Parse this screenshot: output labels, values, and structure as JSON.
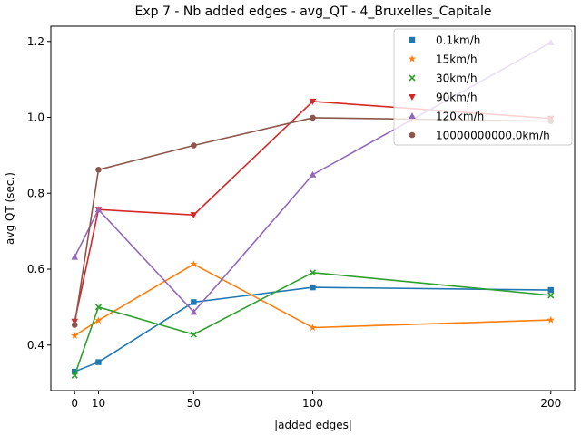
{
  "chart_data": {
    "type": "line",
    "title": "Exp 7 - Nb added edges - avg_QT - 4_Bruxelles_Capitale",
    "xlabel": "|added edges|",
    "ylabel": "avg QT (sec.)",
    "x": [
      0,
      10,
      50,
      100,
      200
    ],
    "xticks": [
      0,
      10,
      50,
      100,
      200
    ],
    "yticks": [
      0.4,
      0.6,
      0.8,
      1.0,
      1.2
    ],
    "ytick_labels": [
      "0.4",
      "0.6",
      "0.8",
      "1.0",
      "1.2"
    ],
    "xlim": [
      -10,
      210
    ],
    "ylim": [
      0.28,
      1.24
    ],
    "grid": false,
    "legend_position": "top-right",
    "series": [
      {
        "name": "0.1km/h",
        "color": "#1f77b4",
        "marker": "square",
        "values": [
          0.33,
          0.355,
          0.513,
          0.552,
          0.545
        ]
      },
      {
        "name": "15km/h",
        "color": "#ff7f0e",
        "marker": "star",
        "values": [
          0.425,
          0.465,
          0.613,
          0.446,
          0.466
        ]
      },
      {
        "name": "30km/h",
        "color": "#2ca02c",
        "marker": "x",
        "values": [
          0.32,
          0.5,
          0.428,
          0.591,
          0.531
        ]
      },
      {
        "name": "90km/h",
        "color": "#d62728",
        "marker": "triangle-down",
        "values": [
          0.462,
          0.757,
          0.743,
          1.042,
          0.997
        ]
      },
      {
        "name": "120km/h",
        "color": "#9467bd",
        "marker": "triangle-up",
        "values": [
          0.632,
          0.757,
          0.487,
          0.849,
          1.197
        ]
      },
      {
        "name": "10000000000.0km/h",
        "color": "#8c564b",
        "marker": "circle",
        "values": [
          0.453,
          0.862,
          0.926,
          0.999,
          0.99
        ]
      }
    ]
  }
}
